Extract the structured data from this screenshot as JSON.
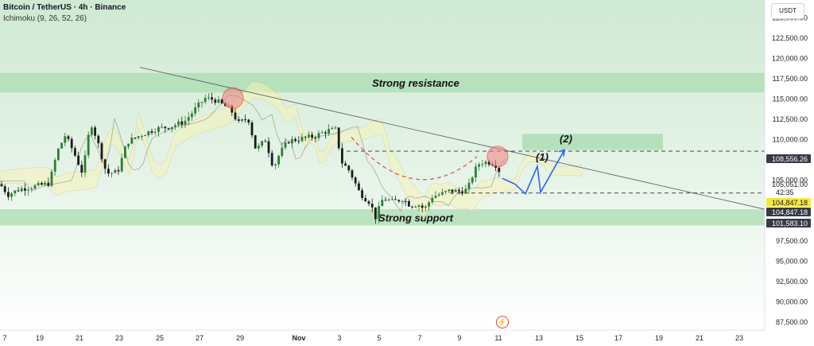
{
  "header": {
    "title": "Bitcoin / TetherUS · 4h · Binance",
    "indicator": "Ichimoku (9, 26, 52, 26)"
  },
  "currency_button": "USDT",
  "chart_data": {
    "type": "candlestick",
    "price_axis": {
      "ticks": [
        125000,
        122500,
        120000,
        117500,
        115000,
        112500,
        110000,
        107500,
        105000,
        102500,
        100000,
        97500,
        95000,
        92500,
        90000,
        87500
      ],
      "tick_labels": [
        "125,000.00",
        "122,500.00",
        "120,000.00",
        "117,500.00",
        "115,000.00",
        "112,500.00",
        "110,000.00",
        "107,500.00",
        "105,000.00",
        "",
        "",
        "97,500.00",
        "95,000.00",
        "92,500.00",
        "90,000.00",
        "87,500.00"
      ],
      "range": [
        86500,
        127200
      ]
    },
    "time_axis": {
      "labels": [
        "7",
        "19",
        "21",
        "23",
        "25",
        "27",
        "29",
        "Nov",
        "3",
        "5",
        "7",
        "9",
        "11",
        "13",
        "15",
        "17",
        "19",
        "21",
        "23"
      ]
    },
    "price_tags": [
      {
        "value": 108556.26,
        "label": "108,556.26",
        "style": "dark"
      },
      {
        "value": 105051.0,
        "label": "105,051.00",
        "sub": "42:35",
        "style": "light"
      },
      {
        "value": 104847.18,
        "label": "104,847.18",
        "style": "yellow"
      },
      {
        "value": 103900,
        "label": "104,847.18",
        "style": "dark"
      },
      {
        "value": 101583.1,
        "label": "101,583.10",
        "style": "dark"
      }
    ],
    "zones": [
      {
        "name": "Strong resistance",
        "low": 115800,
        "high": 118200
      },
      {
        "name": "Strong support",
        "low": 99400,
        "high": 101400
      }
    ],
    "target_box": {
      "label": "(2)",
      "low": 108700,
      "high": 110700
    },
    "annotations": [
      "(1)",
      "(2)"
    ],
    "key_levels": [
      108556.26,
      103400
    ]
  }
}
